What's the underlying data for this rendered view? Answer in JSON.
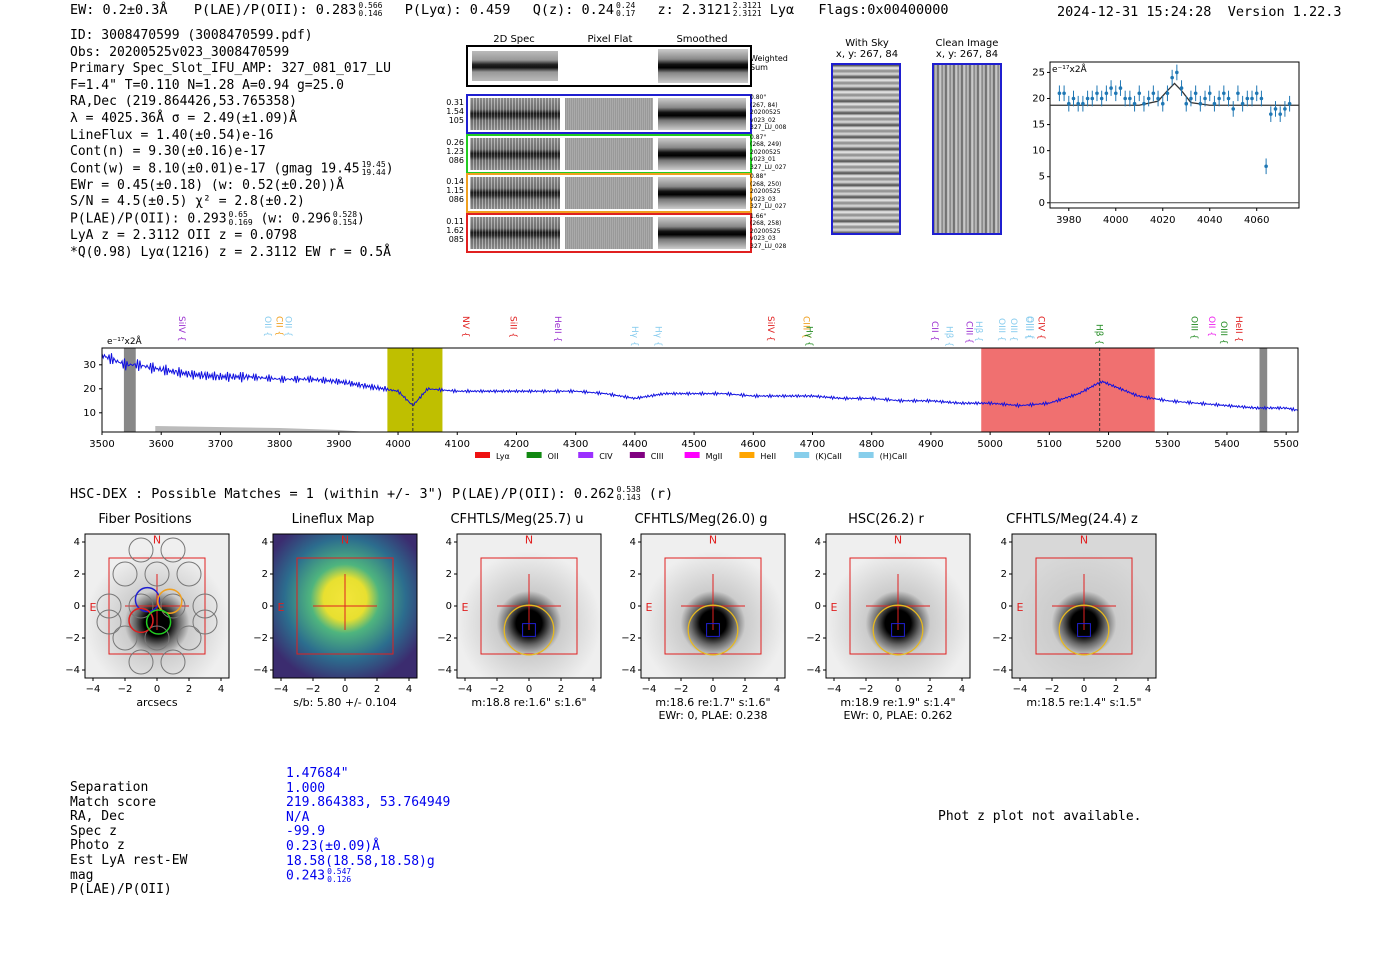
{
  "header": {
    "ew": "EW: 0.2±0.3Å",
    "plae_label": "P(LAE)/P(OII): 0.283",
    "plae_hi": "0.566",
    "plae_lo": "0.146",
    "plya": "P(Lyα): 0.459",
    "qz_label": "Q(z): 0.24",
    "qz_hi": "0.24",
    "qz_lo": "0.17",
    "z_label": "z: 2.3121",
    "z_hi": "2.3121",
    "z_lo": "2.3121",
    "z_line": "Lyα",
    "flags": "Flags:0x00400000",
    "datetime": "2024-12-31 15:24:28",
    "version": "Version 1.22.3"
  },
  "info": {
    "id": "ID: 3008470599 (3008470599.pdf)",
    "obs": "Obs: 20200525v023_3008470599",
    "primary": "Primary Spec_Slot_IFU_AMP: 327_081_017_LU",
    "fparams": "F=1.4\"  T=0.110  N=1.28  A=0.94  g=25.0",
    "radec": "RA,Dec (219.864426,53.765358)",
    "lambda": "λ = 4025.36Å  σ = 2.49(±1.09)Å",
    "lineflux": "LineFlux = 1.40(±0.54)e-16",
    "contn": "Cont(n) = 9.30(±0.16)e-17",
    "contw": "Cont(w) = 8.10(±0.01)e-17 (gmag 19.45",
    "contw_hi": "19.45",
    "contw_lo": "19.44",
    "ewr": "EWr = 0.45(±0.18) (w: 0.52(±0.20))Å",
    "sn": "S/N = 4.5(±0.5)  χ² = 2.8(±0.2)",
    "plae": "P(LAE)/P(OII): 0.293",
    "plae_hi": "0.65",
    "plae_lo": "0.169",
    "plae_w": "(w: 0.296",
    "plae_w_hi": "0.528",
    "plae_w_lo": "0.154",
    "lyaz": "LyA z = 2.3112  OII z = 0.0798",
    "qline": "*Q(0.98) Lyα(1216) z = 2.3112  EW r = 0.5Å"
  },
  "cutouts": {
    "col_titles": [
      "2D Spec",
      "Pixel Flat",
      "Smoothed"
    ],
    "weighted_sum": "Weighted Sum",
    "rows": [
      {
        "n1": "0.31",
        "n2": "1.54",
        "n3": "105",
        "color": "#1f1fd0",
        "meta": [
          "0.80\"",
          "(267, 84)",
          "20200525",
          "v023_02",
          "327_LU_008"
        ]
      },
      {
        "n1": "0.26",
        "n2": "1.23",
        "n3": "086",
        "color": "#22cc22",
        "meta": [
          "0.87\"",
          "(268, 249)",
          "20200525",
          "v023_01",
          "327_LU_027"
        ]
      },
      {
        "n1": "0.14",
        "n2": "1.15",
        "n3": "086",
        "color": "#f0a020",
        "meta": [
          "0.88\"",
          "(268, 250)",
          "20200525",
          "v023_03",
          "327_LU_027"
        ]
      },
      {
        "n1": "0.11",
        "n2": "1.62",
        "n3": "085",
        "color": "#e02020",
        "meta": [
          "1.66\"",
          "(268, 258)",
          "20200525",
          "v023_03",
          "327_LU_028"
        ]
      }
    ]
  },
  "sky": {
    "with_sky_title": "With Sky",
    "with_sky_xy": "x, y: 267, 84",
    "clean_title": "Clean Image",
    "clean_xy": "x, y: 267, 84"
  },
  "zoom_plot": {
    "unit_label": "e⁻¹⁷x2Å",
    "x_ticks": [
      "3980",
      "4000",
      "4020",
      "4040",
      "4060"
    ],
    "y_ticks": [
      "0",
      "5",
      "10",
      "15",
      "20",
      "25"
    ]
  },
  "spectrum": {
    "unit_label": "e⁻¹⁷x2Å",
    "x_ticks": [
      "3500",
      "3600",
      "3700",
      "3800",
      "3900",
      "4000",
      "4100",
      "4200",
      "4300",
      "4400",
      "4500",
      "4600",
      "4700",
      "4800",
      "4900",
      "5000",
      "5100",
      "5200",
      "5300",
      "5400",
      "5500"
    ],
    "y_ticks": [
      "10",
      "20",
      "30"
    ],
    "line_labels": [
      {
        "t": "SiIV {",
        "c": "#9b30d0"
      },
      {
        "t": "OII {",
        "c": "#88ccee"
      },
      {
        "t": "CII {",
        "c": "#f0a020"
      },
      {
        "t": "OII {",
        "c": "#88ccee"
      },
      {
        "t": "NV {",
        "c": "#e02020"
      },
      {
        "t": "SiII {",
        "c": "#e02020"
      },
      {
        "t": "HeII {",
        "c": "#9b30d0"
      },
      {
        "t": "Hγ {",
        "c": "#88ccee"
      },
      {
        "t": "Hγ {",
        "c": "#88ccee"
      },
      {
        "t": "SiIV {",
        "c": "#e02020"
      },
      {
        "t": "CIII {",
        "c": "#f0a020"
      },
      {
        "t": "Hγ {",
        "c": "#228b22"
      },
      {
        "t": "CII {",
        "c": "#9b30d0"
      },
      {
        "t": "Hβ {",
        "c": "#88ccee"
      },
      {
        "t": "CIII {",
        "c": "#9b30d0"
      },
      {
        "t": "Hβ {",
        "c": "#88ccee"
      },
      {
        "t": "OIII {",
        "c": "#88ccee"
      },
      {
        "t": "OIII {",
        "c": "#88ccee"
      },
      {
        "t": "OIII {",
        "c": "#88ccee"
      },
      {
        "t": "OIII {",
        "c": "#88ccee"
      },
      {
        "t": "CIV {",
        "c": "#e02020"
      },
      {
        "t": "Hβ {",
        "c": "#228b22"
      },
      {
        "t": "OIII {",
        "c": "#228b22"
      },
      {
        "t": "OII {",
        "c": "#ee22ee"
      },
      {
        "t": "OIII {",
        "c": "#228b22"
      },
      {
        "t": "HeII {",
        "c": "#e02020"
      }
    ],
    "legend": [
      {
        "label": "Lyα",
        "color": "#ee1111"
      },
      {
        "label": "OII",
        "color": "#118811"
      },
      {
        "label": "CIV",
        "color": "#9b30ff"
      },
      {
        "label": "CIII",
        "color": "#800080"
      },
      {
        "label": "MgII",
        "color": "#ff00ff"
      },
      {
        "label": "HeII",
        "color": "#ffa500"
      },
      {
        "label": "(K)CaII",
        "color": "#87ceeb"
      },
      {
        "label": "(H)CaII",
        "color": "#87ceeb"
      }
    ]
  },
  "chart_data": [
    {
      "type": "line",
      "title": "",
      "xlabel": "",
      "ylabel": "e⁻¹⁷x2Å",
      "xlim": [
        3500,
        5520
      ],
      "ylim": [
        2,
        37
      ],
      "x": [
        3500,
        3540,
        3560,
        3600,
        3650,
        3700,
        3750,
        3800,
        3850,
        3900,
        3950,
        4000,
        4025,
        4050,
        4100,
        4150,
        4200,
        4250,
        4300,
        4350,
        4400,
        4450,
        4500,
        4550,
        4600,
        4650,
        4700,
        4750,
        4800,
        4850,
        4900,
        4950,
        5000,
        5050,
        5100,
        5150,
        5180,
        5190,
        5200,
        5250,
        5300,
        5350,
        5400,
        5450,
        5500,
        5520
      ],
      "y": [
        34,
        30,
        30,
        28,
        26,
        25,
        25,
        24,
        24,
        23,
        21,
        19,
        13,
        20,
        19,
        19,
        19,
        19,
        19,
        18,
        16,
        18,
        18,
        18,
        17,
        17,
        17,
        16,
        16,
        15,
        15,
        14,
        14,
        13,
        14,
        18,
        22,
        23,
        22,
        17,
        15,
        14,
        13,
        12,
        12,
        11
      ],
      "annotations": [
        "Lyα z=2.3121 at 4025 Å",
        "emission near 5190 Å"
      ]
    },
    {
      "type": "scatter",
      "title": "",
      "xlabel": "",
      "ylabel": "e⁻¹⁷x2Å",
      "xlim": [
        3972,
        4078
      ],
      "ylim": [
        -1,
        27
      ],
      "x": [
        3976,
        3978,
        3980,
        3982,
        3984,
        3986,
        3988,
        3990,
        3992,
        3994,
        3996,
        3998,
        4000,
        4002,
        4004,
        4006,
        4008,
        4010,
        4012,
        4014,
        4016,
        4018,
        4020,
        4022,
        4024,
        4026,
        4028,
        4030,
        4032,
        4034,
        4036,
        4038,
        4040,
        4042,
        4044,
        4046,
        4048,
        4050,
        4052,
        4054,
        4056,
        4058,
        4060,
        4062,
        4064,
        4066,
        4068,
        4070,
        4072,
        4074
      ],
      "y": [
        21,
        21,
        19,
        20,
        19,
        19,
        20,
        20,
        21,
        20,
        21,
        22,
        21,
        22,
        20,
        20,
        19,
        21,
        19,
        20,
        21,
        20,
        19,
        21,
        24,
        25,
        22,
        19,
        20,
        21,
        19,
        20,
        21,
        19,
        20,
        21,
        20,
        18,
        21,
        19,
        20,
        20,
        21,
        20,
        7,
        17,
        18,
        17,
        18,
        19
      ],
      "fit_x": [
        3972,
        4000,
        4010,
        4018,
        4022,
        4025,
        4028,
        4032,
        4040,
        4078
      ],
      "fit_y": [
        18.7,
        18.7,
        18.7,
        19.5,
        21.5,
        22.9,
        21.5,
        19.2,
        18.7,
        18.7
      ]
    }
  ],
  "hsc": {
    "summary": "HSC-DEX : Possible Matches = 1 (within +/- 3\")  P(LAE)/P(OII): 0.262",
    "summary_hi": "0.538",
    "summary_lo": "0.143",
    "summary_band": "(r)",
    "thumbs": [
      {
        "title": "Fiber Positions",
        "cap1": "arcsecs",
        "cap2": ""
      },
      {
        "title": "Lineflux Map",
        "cap1": "s/b: 5.80 +/- 0.104",
        "cap2": ""
      },
      {
        "title": "CFHTLS/Meg(25.7) u",
        "cap1": "m:18.8  re:1.6\"  s:1.6\"",
        "cap2": ""
      },
      {
        "title": "CFHTLS/Meg(26.0) g",
        "cap1": "m:18.6  re:1.7\"  s:1.6\"",
        "cap2": "EWr: 0, PLAE: 0.238"
      },
      {
        "title": "HSC(26.2) r",
        "cap1": "m:18.9  re:1.9\"  s:1.4\"",
        "cap2": "EWr: 0, PLAE: 0.262"
      },
      {
        "title": "CFHTLS/Meg(24.4) z",
        "cap1": "m:18.5  re:1.4\"  s:1.5\"",
        "cap2": ""
      }
    ],
    "axis_ticks": [
      "−4",
      "−2",
      "0",
      "2",
      "4"
    ],
    "y_ticks": [
      "4",
      "2",
      "0",
      "−2",
      "−4"
    ],
    "north": "N",
    "east": "E"
  },
  "match": {
    "labels": [
      "Separation",
      "Match score",
      "RA, Dec",
      "Spec z",
      "Photo z",
      "Est LyA rest-EW",
      "mag",
      "P(LAE)/P(OII)"
    ],
    "values": [
      "1.47684\"",
      "1.000",
      "219.864383, 53.764949",
      "N/A",
      "-99.9",
      "0.23(±0.09)Å",
      "18.58(18.58,18.58)g",
      "0.243"
    ],
    "plae_hi": "0.547",
    "plae_lo": "0.126",
    "photz_note": "Phot z plot not available."
  }
}
